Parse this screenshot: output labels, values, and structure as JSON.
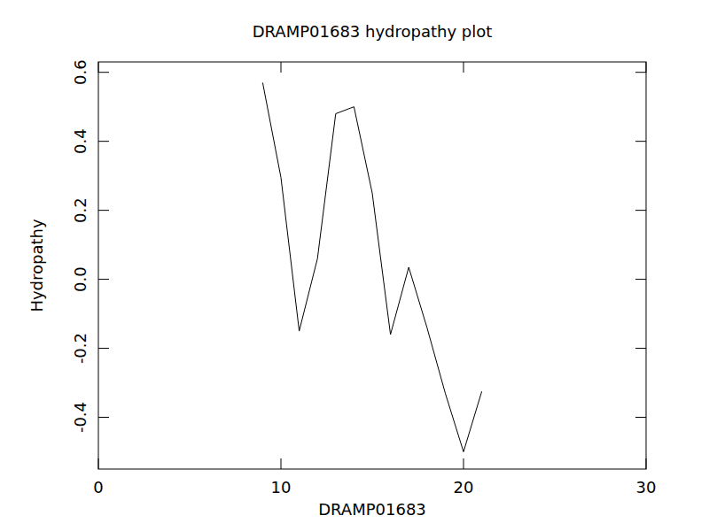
{
  "chart_data": {
    "type": "line",
    "title": "DRAMP01683 hydropathy plot",
    "x_label": "DRAMP01683",
    "y_label": "Hydropathy",
    "x": [
      9,
      10,
      11,
      12,
      13,
      14,
      15,
      16,
      17,
      18,
      19,
      20,
      21
    ],
    "values": [
      0.57,
      0.295,
      -0.15,
      0.06,
      0.48,
      0.5,
      0.25,
      -0.16,
      0.035,
      -0.14,
      -0.33,
      -0.5,
      -0.325
    ],
    "color": "#000000",
    "xlim": [
      0,
      30
    ],
    "xticks": [
      0,
      10,
      20,
      30
    ],
    "ylim": [
      -0.55,
      0.63
    ],
    "yticks": [
      -0.4,
      -0.2,
      {
        "value": 0,
        "label": "0.0"
      },
      0.2,
      0.4,
      0.6
    ],
    "grid": false
  }
}
